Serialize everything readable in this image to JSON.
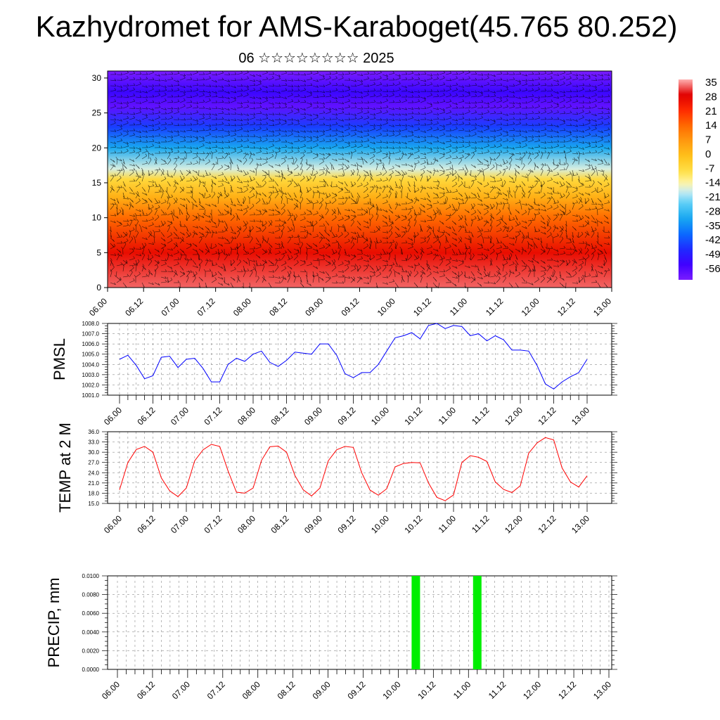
{
  "title": "Kazhydromet for AMS-Karaboget(45.765 80.252)",
  "subtitle": "06 ☆☆☆☆☆☆☆☆ 2025",
  "colors": {
    "pmsl_line": "#0000ff",
    "temp_line": "#ff0000",
    "precip_bar": "#00ee00",
    "grid": "#000000"
  },
  "chart_data": [
    {
      "type": "heatmap",
      "name_hint": "cross-section",
      "x_ticks": [
        "06.00",
        "06.12",
        "07.00",
        "07.12",
        "08.00",
        "08.12",
        "09.00",
        "09.12",
        "10.00",
        "10.12",
        "11.00",
        "11.12",
        "12.00",
        "12.12",
        "13.00"
      ],
      "y_ticks": [
        "0",
        "5",
        "10",
        "15",
        "20",
        "25",
        "30"
      ],
      "ylim": [
        0,
        31
      ],
      "colorbar_labels": [
        "35",
        "28",
        "21",
        "14",
        "7",
        "0",
        "-7",
        "-14",
        "-21",
        "-28",
        "-35",
        "-42",
        "-49",
        "-56"
      ],
      "colorbar_range": [
        -56,
        35
      ],
      "vertical_profile": [
        {
          "level": 0,
          "value": 32
        },
        {
          "level": 5,
          "value": 26
        },
        {
          "level": 10,
          "value": 14
        },
        {
          "level": 13,
          "value": 3
        },
        {
          "level": 15.5,
          "value": -5
        },
        {
          "level": 17,
          "value": -15
        },
        {
          "level": 20,
          "value": -28
        },
        {
          "level": 23,
          "value": -40
        },
        {
          "level": 26,
          "value": -53
        },
        {
          "level": 28,
          "value": -48
        },
        {
          "level": 31,
          "value": -56
        }
      ]
    },
    {
      "type": "line",
      "ylabel": "PMSL",
      "x_ticks": [
        "06.00",
        "06.12",
        "07.00",
        "07.12",
        "08.00",
        "08.12",
        "09.00",
        "09.12",
        "10.00",
        "10.12",
        "11.00",
        "11.12",
        "12.00",
        "12.12",
        "13.00"
      ],
      "y_ticks": [
        "1001.0",
        "1002.0",
        "1003.0",
        "1004.0",
        "1005.0",
        "1006.0",
        "1007.0",
        "1008.0"
      ],
      "ylim": [
        1001.0,
        1008.0
      ],
      "series": [
        {
          "values": [
            1004.5,
            1004.9,
            1003.9,
            1002.6,
            1002.9,
            1004.7,
            1004.8,
            1003.7,
            1004.5,
            1004.6,
            1003.6,
            1002.3,
            1002.3,
            1004.0,
            1004.6,
            1004.3,
            1005.0,
            1005.3,
            1004.2,
            1003.8,
            1004.4,
            1005.2,
            1005.1,
            1005.0,
            1006.0,
            1006.0,
            1004.9,
            1003.1,
            1002.7,
            1003.2,
            1003.2,
            1004.0,
            1005.3,
            1006.6,
            1006.8,
            1007.1,
            1006.5,
            1007.8,
            1008.0,
            1007.5,
            1007.8,
            1007.7,
            1006.8,
            1007.0,
            1006.3,
            1006.8,
            1006.4,
            1005.4,
            1005.4,
            1005.3,
            1003.9,
            1002.1,
            1001.6,
            1002.3,
            1002.8,
            1003.2,
            1004.5
          ]
        }
      ]
    },
    {
      "type": "line",
      "ylabel": "TEMP at 2 M",
      "x_ticks": [
        "06.00",
        "06.12",
        "07.00",
        "07.12",
        "08.00",
        "08.12",
        "09.00",
        "09.12",
        "10.00",
        "10.12",
        "11.00",
        "11.12",
        "12.00",
        "12.12",
        "13.00"
      ],
      "y_ticks": [
        "15.0",
        "18.0",
        "21.0",
        "24.0",
        "27.0",
        "30.0",
        "33.0",
        "36.0"
      ],
      "ylim": [
        15.0,
        36.0
      ],
      "series": [
        {
          "values": [
            19.0,
            27.0,
            30.8,
            31.7,
            30.0,
            22.5,
            18.7,
            17.0,
            19.5,
            27.5,
            30.7,
            32.3,
            31.7,
            24.5,
            18.3,
            18.0,
            19.5,
            27.6,
            31.6,
            31.8,
            30.0,
            23.2,
            19.0,
            17.2,
            19.5,
            27.5,
            30.7,
            31.7,
            31.4,
            24.0,
            18.9,
            17.4,
            19.3,
            25.7,
            26.7,
            27.0,
            26.9,
            21.0,
            16.8,
            15.8,
            17.5,
            27.0,
            29.0,
            28.5,
            27.3,
            21.3,
            19.1,
            18.2,
            20.2,
            29.7,
            32.7,
            34.3,
            33.6,
            25.4,
            21.3,
            19.8,
            23.1
          ]
        }
      ]
    },
    {
      "type": "bar",
      "ylabel": "PRECIP, mm",
      "x_ticks": [
        "06.00",
        "06.12",
        "07.00",
        "07.12",
        "08.00",
        "08.12",
        "09.00",
        "09.12",
        "10.00",
        "10.12",
        "11.00",
        "11.12",
        "12.00",
        "12.12",
        "13.00"
      ],
      "y_ticks": [
        "0.0000",
        "0.0020",
        "0.0040",
        "0.0060",
        "0.0080",
        "0.0100"
      ],
      "ylim": [
        0,
        0.01
      ],
      "bars": [
        {
          "x": "10.06",
          "value": 0.01
        },
        {
          "x": "11.03",
          "value": 0.01
        }
      ]
    }
  ]
}
